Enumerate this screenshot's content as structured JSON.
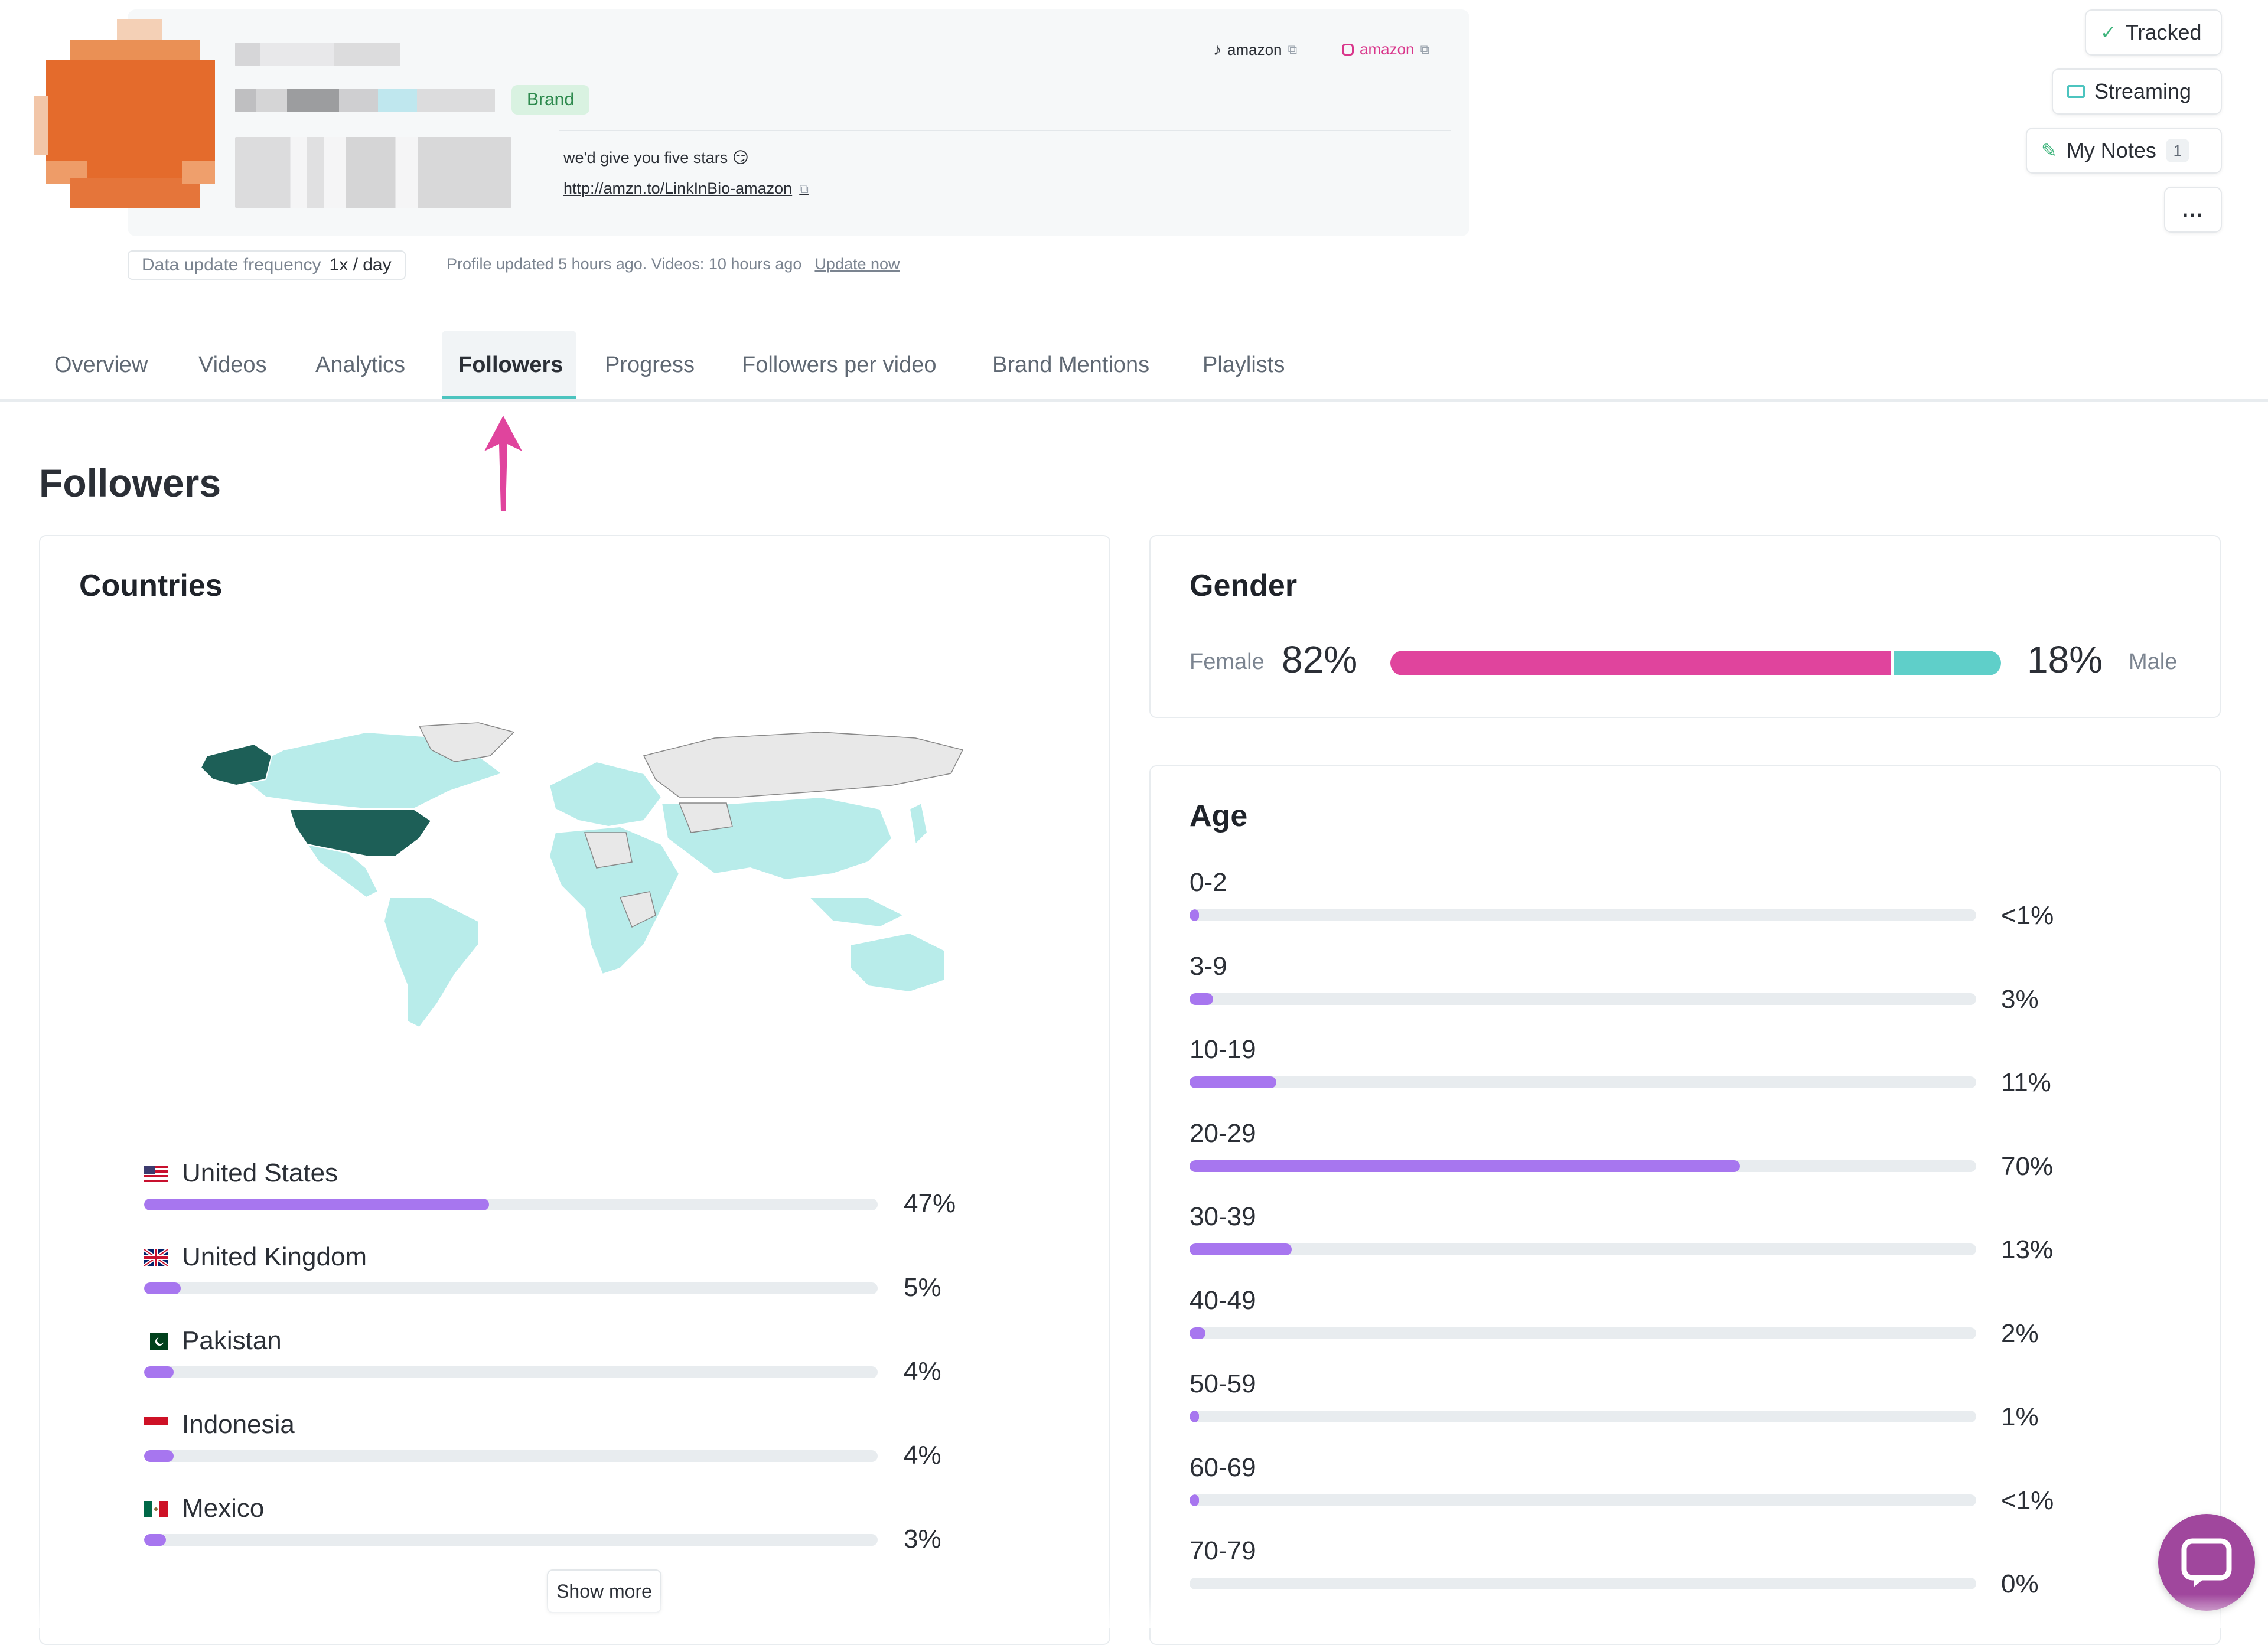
{
  "profile": {
    "badge": "Brand",
    "socials": [
      {
        "platform_icon": "tiktok-icon",
        "label": "amazon",
        "color": "#2b2f36"
      },
      {
        "platform_icon": "instagram-icon",
        "label": "amazon",
        "color": "#d9368b"
      }
    ],
    "bio": "we'd give you five stars 😏",
    "link": "http://amzn.to/LinkInBio-amazon",
    "update_frequency_label": "Data update frequency",
    "update_frequency_value": "1x / day",
    "updated_text": "Profile updated 5 hours ago. Videos: 10 hours ago",
    "update_now": "Update now"
  },
  "actions": {
    "tracked": "Tracked",
    "streaming": "Streaming",
    "notes": "My Notes",
    "notes_count": "1",
    "more": "..."
  },
  "tabs": [
    {
      "label": "Overview",
      "active": false
    },
    {
      "label": "Videos",
      "active": false
    },
    {
      "label": "Analytics",
      "active": false
    },
    {
      "label": "Followers",
      "active": true
    },
    {
      "label": "Progress",
      "active": false
    },
    {
      "label": "Followers per video",
      "active": false
    },
    {
      "label": "Brand Mentions",
      "active": false
    },
    {
      "label": "Playlists",
      "active": false
    }
  ],
  "page_title": "Followers",
  "countries": {
    "title": "Countries",
    "items": [
      {
        "name": "United States",
        "pct_label": "47%",
        "value": 47,
        "flag": "flag-us-icon"
      },
      {
        "name": "United Kingdom",
        "pct_label": "5%",
        "value": 5,
        "flag": "flag-uk-icon"
      },
      {
        "name": "Pakistan",
        "pct_label": "4%",
        "value": 4,
        "flag": "flag-pk-icon"
      },
      {
        "name": "Indonesia",
        "pct_label": "4%",
        "value": 4,
        "flag": "flag-id-icon"
      },
      {
        "name": "Mexico",
        "pct_label": "3%",
        "value": 3,
        "flag": "flag-mx-icon"
      }
    ],
    "show_more": "Show more"
  },
  "gender": {
    "title": "Gender",
    "female_label": "Female",
    "female_pct": "82%",
    "female_value": 82,
    "male_label": "Male",
    "male_pct": "18%",
    "male_value": 18,
    "female_color": "#e0449d",
    "male_color": "#5fcfc9"
  },
  "age": {
    "title": "Age",
    "items": [
      {
        "range": "0-2",
        "pct_label": "<1%",
        "value": 1
      },
      {
        "range": "3-9",
        "pct_label": "3%",
        "value": 3
      },
      {
        "range": "10-19",
        "pct_label": "11%",
        "value": 11
      },
      {
        "range": "20-29",
        "pct_label": "70%",
        "value": 70
      },
      {
        "range": "30-39",
        "pct_label": "13%",
        "value": 13
      },
      {
        "range": "40-49",
        "pct_label": "2%",
        "value": 2
      },
      {
        "range": "50-59",
        "pct_label": "1%",
        "value": 1
      },
      {
        "range": "60-69",
        "pct_label": "<1%",
        "value": 1
      },
      {
        "range": "70-79",
        "pct_label": "0%",
        "value": 0
      }
    ]
  },
  "colors": {
    "accent": "#4cc4bf",
    "bar": "#a776ef",
    "map_highlight": "#1d5f57",
    "map_fill": "#b8ecea",
    "arrow": "#e0449d"
  }
}
